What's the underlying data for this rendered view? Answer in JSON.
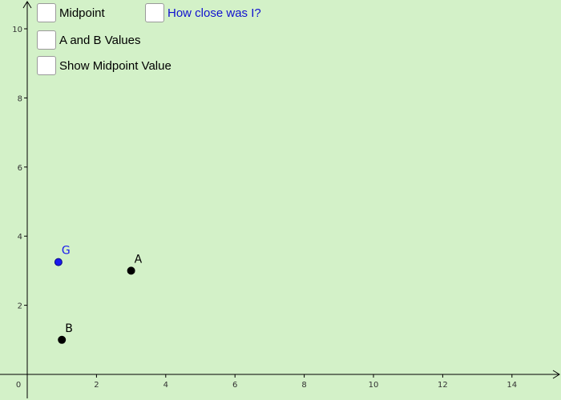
{
  "checkboxes": {
    "midpoint": {
      "label": "Midpoint",
      "checked": false
    },
    "how_close": {
      "label": "How close was I?",
      "checked": false,
      "color": "#1010d0"
    },
    "ab_values": {
      "label": "A and B Values",
      "checked": false
    },
    "show_midpoint_value": {
      "label": "Show Midpoint Value",
      "checked": false
    }
  },
  "graph": {
    "xlim": [
      0,
      15
    ],
    "ylim": [
      0,
      10.5
    ],
    "x_ticks": [
      "0",
      "2",
      "4",
      "6",
      "8",
      "10",
      "12",
      "14"
    ],
    "y_ticks": [
      "2",
      "4",
      "6",
      "8",
      "10"
    ],
    "points": [
      {
        "name": "A",
        "x": 3,
        "y": 3,
        "color": "#000000"
      },
      {
        "name": "B",
        "x": 1,
        "y": 1,
        "color": "#000000"
      },
      {
        "name": "G",
        "x": 0.9,
        "y": 3.25,
        "color": "#1a1aee"
      }
    ]
  },
  "colors": {
    "background": "#d3f1c8",
    "axis": "#000000",
    "point_blue": "#1a1aee"
  }
}
